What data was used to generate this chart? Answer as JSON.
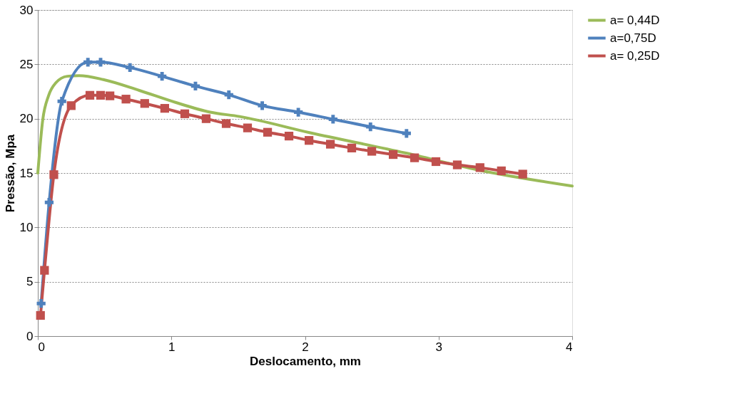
{
  "chart_data": {
    "type": "line",
    "xlabel": "Deslocamento, mm",
    "ylabel": "Pressão, Mpa",
    "xlim": [
      0,
      4
    ],
    "ylim": [
      0,
      30
    ],
    "xticks": [
      0,
      1,
      2,
      3,
      4
    ],
    "yticks": [
      0,
      5,
      10,
      15,
      20,
      25,
      30
    ],
    "grid": "y",
    "legend": "right",
    "line_style": "solid",
    "series": [
      {
        "name": "a= 0,44D",
        "color": "#9bbb59",
        "marker": "none",
        "x": [
          0,
          0.037,
          0.08,
          0.135,
          0.22,
          0.31,
          0.49,
          0.76,
          1.03,
          1.29,
          1.51,
          2.04,
          2.75,
          3.29,
          4.0
        ],
        "values": [
          15.0,
          19.9,
          22.1,
          23.3,
          23.9,
          23.95,
          23.6,
          22.6,
          21.5,
          20.6,
          20.2,
          18.7,
          16.85,
          15.3,
          13.8
        ]
      },
      {
        "name": "a=0,75D",
        "color": "#4f81bd",
        "marker": "cross",
        "x": [
          0.025,
          0.085,
          0.18,
          0.375,
          0.47,
          0.69,
          0.93,
          1.18,
          1.43,
          1.68,
          1.95,
          2.21,
          2.49,
          2.76
        ],
        "values": [
          3.0,
          12.3,
          21.6,
          25.2,
          25.2,
          24.7,
          23.9,
          23.0,
          22.2,
          21.2,
          20.6,
          19.95,
          19.25,
          18.65
        ]
      },
      {
        "name": "a= 0,25D",
        "color": "#c0504d",
        "marker": "square",
        "x": [
          0.02,
          0.05,
          0.12,
          0.25,
          0.39,
          0.47,
          0.54,
          0.66,
          0.8,
          0.95,
          1.1,
          1.26,
          1.41,
          1.57,
          1.72,
          1.88,
          2.03,
          2.19,
          2.35,
          2.5,
          2.66,
          2.82,
          2.98,
          3.14,
          3.31,
          3.47,
          3.63
        ],
        "values": [
          1.9,
          6.05,
          14.85,
          21.2,
          22.15,
          22.15,
          22.1,
          21.8,
          21.4,
          20.95,
          20.45,
          20.0,
          19.55,
          19.15,
          18.75,
          18.4,
          18.0,
          17.65,
          17.3,
          17.0,
          16.7,
          16.4,
          16.05,
          15.75,
          15.5,
          15.2,
          14.9
        ]
      }
    ]
  }
}
